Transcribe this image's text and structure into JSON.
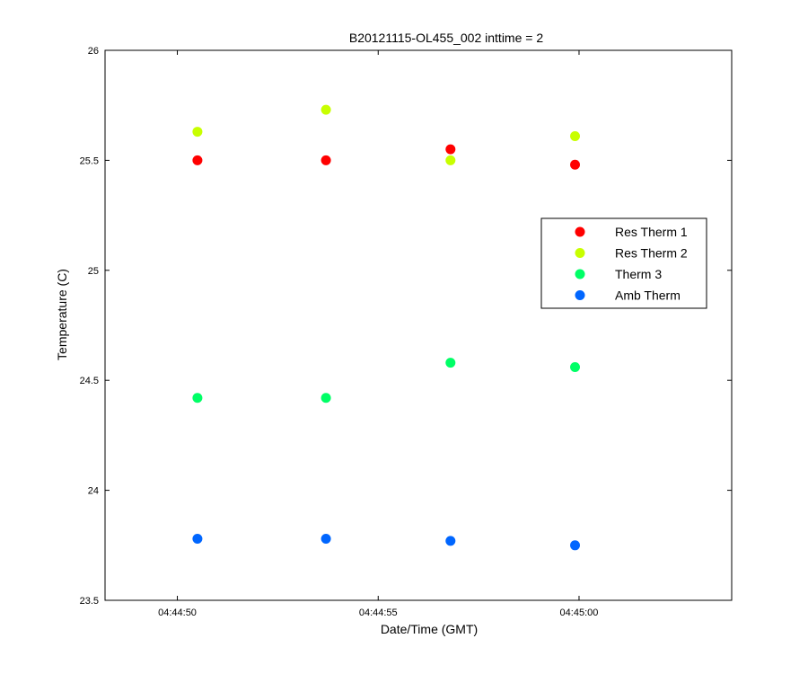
{
  "chart_data": {
    "type": "scatter",
    "title": "B20121115-OL455_002 inttime = 2",
    "xlabel": "Date/Time (GMT)",
    "ylabel": "Temperature (C)",
    "xlim": [
      "04:44:48.2",
      "04:45:03.8"
    ],
    "ylim": [
      23.5,
      26
    ],
    "x_ticks": [
      "04:44:50",
      "04:44:55",
      "04:45:00"
    ],
    "y_ticks": [
      23.5,
      24,
      24.5,
      25,
      25.5,
      26
    ],
    "y_tick_labels": [
      "23.5",
      "24",
      "24.5",
      "25",
      "25.5",
      "26"
    ],
    "grid": false,
    "legend_position": "right",
    "x": [
      "04:44:50.5",
      "04:44:53.7",
      "04:44:56.8",
      "04:44:59.9"
    ],
    "series": [
      {
        "name": "Res Therm 1",
        "color": "#ff0000",
        "values": [
          25.5,
          25.5,
          25.55,
          25.48
        ]
      },
      {
        "name": "Res Therm 2",
        "color": "#c8ff00",
        "values": [
          25.63,
          25.73,
          25.5,
          25.61
        ]
      },
      {
        "name": "Therm 3",
        "color": "#00ff66",
        "values": [
          24.42,
          24.42,
          24.58,
          24.56
        ]
      },
      {
        "name": "Amb Therm",
        "color": "#0066ff",
        "values": [
          23.78,
          23.78,
          23.77,
          23.75
        ]
      }
    ]
  }
}
